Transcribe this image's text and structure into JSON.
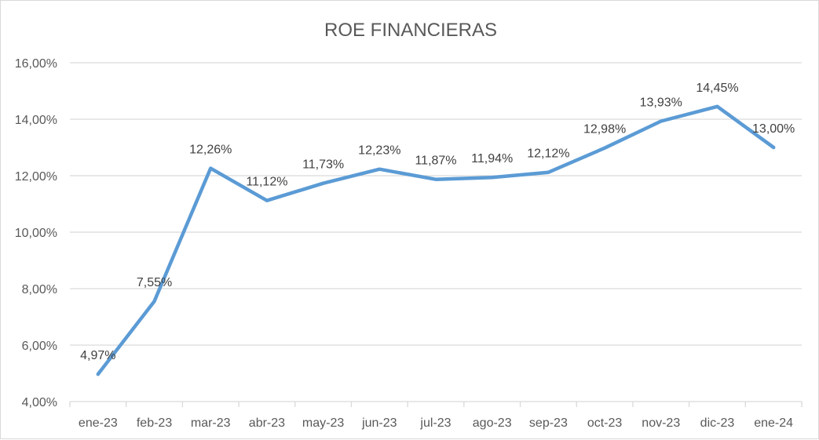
{
  "chart_data": {
    "type": "line",
    "title": "ROE FINANCIERAS",
    "categories": [
      "ene-23",
      "feb-23",
      "mar-23",
      "abr-23",
      "may-23",
      "jun-23",
      "jul-23",
      "ago-23",
      "sep-23",
      "oct-23",
      "nov-23",
      "dic-23",
      "ene-24"
    ],
    "series": [
      {
        "values": [
          4.97,
          7.55,
          12.26,
          11.12,
          11.73,
          12.23,
          11.87,
          11.94,
          12.12,
          12.98,
          13.93,
          14.45,
          13.0
        ],
        "labels": [
          "4,97%",
          "7,55%",
          "12,26%",
          "11,12%",
          "11,73%",
          "12,23%",
          "11,87%",
          "11,94%",
          "12,12%",
          "12,98%",
          "13,93%",
          "14,45%",
          "13,00%"
        ],
        "color": "#5b9bd5"
      }
    ],
    "y_ticks": [
      4,
      6,
      8,
      10,
      12,
      14,
      16
    ],
    "y_tick_labels": [
      "4,00%",
      "6,00%",
      "8,00%",
      "10,00%",
      "12,00%",
      "14,00%",
      "16,00%"
    ],
    "ylim": [
      4,
      16
    ],
    "grid": true,
    "legend": "none"
  }
}
